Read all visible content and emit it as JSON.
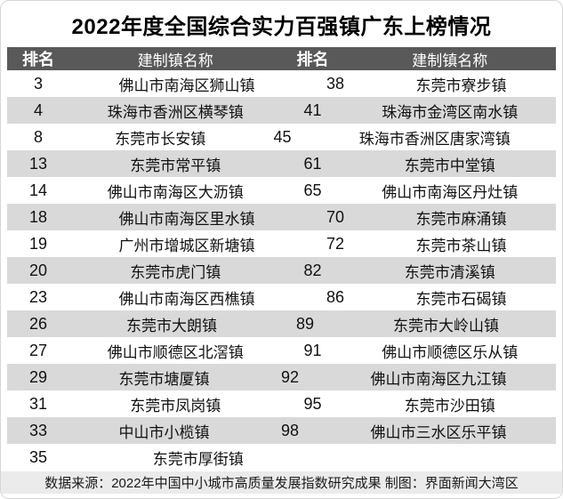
{
  "title": "2022年度全国综合实力百强镇广东上榜情况",
  "table": {
    "headers": [
      "排名",
      "建制镇名称",
      "排名",
      "建制镇名称"
    ],
    "rows": [
      [
        "3",
        "佛山市南海区狮山镇",
        "38",
        "东莞市寮步镇"
      ],
      [
        "4",
        "珠海市香洲区横琴镇",
        "41",
        "珠海市金湾区南水镇"
      ],
      [
        "8",
        "东莞市长安镇",
        "45",
        "珠海市香洲区唐家湾镇"
      ],
      [
        "13",
        "东莞市常平镇",
        "61",
        "东莞市中堂镇"
      ],
      [
        "14",
        "佛山市南海区大沥镇",
        "65",
        "佛山市南海区丹灶镇"
      ],
      [
        "18",
        "佛山市南海区里水镇",
        "70",
        "东莞市麻涌镇"
      ],
      [
        "19",
        "广州市增城区新塘镇",
        "72",
        "东莞市茶山镇"
      ],
      [
        "20",
        "东莞市虎门镇",
        "82",
        "东莞市清溪镇"
      ],
      [
        "23",
        "佛山市南海区西樵镇",
        "86",
        "东莞市石碣镇"
      ],
      [
        "26",
        "东莞市大朗镇",
        "89",
        "东莞市大岭山镇"
      ],
      [
        "27",
        "佛山市顺德区北滘镇",
        "91",
        "佛山市顺德区乐从镇"
      ],
      [
        "29",
        "东莞市塘厦镇",
        "92",
        "佛山市南海区九江镇"
      ],
      [
        "31",
        "东莞市凤岗镇",
        "95",
        "东莞市沙田镇"
      ],
      [
        "33",
        "中山市小榄镇",
        "98",
        "佛山市三水区乐平镇"
      ],
      [
        "35",
        "东莞市厚街镇",
        "",
        ""
      ]
    ]
  },
  "footer": {
    "text": "数据来源：2022年中国中小城市高质量发展指数研究成果 制图：界面新闻大湾区"
  },
  "colors": {
    "header_bg": "#595959",
    "alt_row_bg": "#d9d9d9",
    "footer_bg": "#ebebeb",
    "title_text": "#000000",
    "header_text": "#ffffff"
  },
  "chart_data": {
    "type": "table",
    "title": "2022年度全国综合实力百强镇广东上榜情况",
    "columns": [
      "排名",
      "建制镇名称",
      "排名",
      "建制镇名称"
    ],
    "rows": [
      [
        "3",
        "佛山市南海区狮山镇",
        "38",
        "东莞市寮步镇"
      ],
      [
        "4",
        "珠海市香洲区横琴镇",
        "41",
        "珠海市金湾区南水镇"
      ],
      [
        "8",
        "东莞市长安镇",
        "45",
        "珠海市香洲区唐家湾镇"
      ],
      [
        "13",
        "东莞市常平镇",
        "61",
        "东莞市中堂镇"
      ],
      [
        "14",
        "佛山市南海区大沥镇",
        "65",
        "佛山市南海区丹灶镇"
      ],
      [
        "18",
        "佛山市南海区里水镇",
        "70",
        "东莞市麻涌镇"
      ],
      [
        "19",
        "广州市增城区新塘镇",
        "72",
        "东莞市茶山镇"
      ],
      [
        "20",
        "东莞市虎门镇",
        "82",
        "东莞市清溪镇"
      ],
      [
        "23",
        "佛山市南海区西樵镇",
        "86",
        "东莞市石碣镇"
      ],
      [
        "26",
        "东莞市大朗镇",
        "89",
        "东莞市大岭山镇"
      ],
      [
        "27",
        "佛山市顺德区北滘镇",
        "91",
        "佛山市顺德区乐从镇"
      ],
      [
        "29",
        "东莞市塘厦镇",
        "92",
        "佛山市南海区九江镇"
      ],
      [
        "31",
        "东莞市凤岗镇",
        "95",
        "东莞市沙田镇"
      ],
      [
        "33",
        "中山市小榄镇",
        "98",
        "佛山市三水区乐平镇"
      ],
      [
        "35",
        "东莞市厚街镇",
        "",
        ""
      ]
    ],
    "source_note": "数据来源：2022年中国中小城市高质量发展指数研究成果 制图：界面新闻大湾区",
    "layout": {
      "alternating_rows": true,
      "two_panel_table": true
    }
  }
}
